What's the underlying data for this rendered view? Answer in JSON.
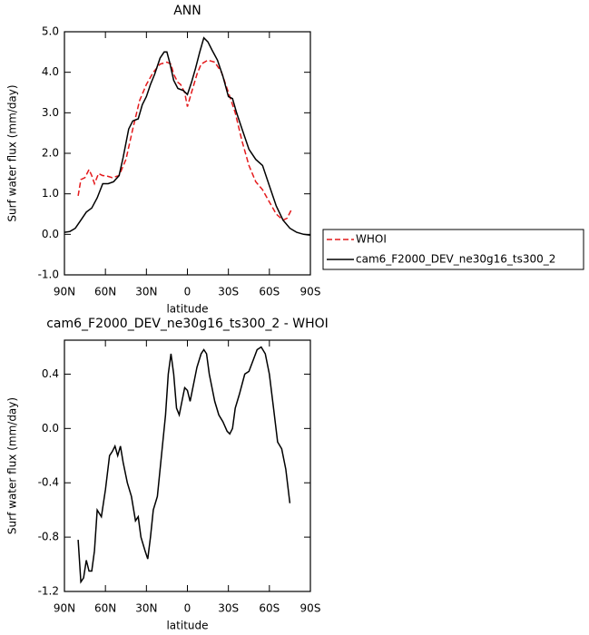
{
  "chart_data": [
    {
      "type": "line",
      "title": "ANN",
      "x_label": "latitude",
      "y_label": "Surf water flux (mm/day)",
      "xlim": [
        90,
        -90
      ],
      "xticks": [
        {
          "value": 90,
          "label": "90N"
        },
        {
          "value": 60,
          "label": "60N"
        },
        {
          "value": 30,
          "label": "30N"
        },
        0,
        {
          "value": -30,
          "label": "30S"
        },
        {
          "value": -60,
          "label": "60S"
        },
        {
          "value": -90,
          "label": "90S"
        }
      ],
      "ylim": [
        -1,
        5
      ],
      "yticks": [
        {
          "value": -1,
          "label": "-1.0"
        },
        {
          "value": 0,
          "label": "0.0"
        },
        {
          "value": 1,
          "label": "1.0"
        },
        {
          "value": 2,
          "label": "2.0"
        },
        {
          "value": 3,
          "label": "3.0"
        },
        {
          "value": 4,
          "label": "4.0"
        },
        {
          "value": 5,
          "label": "5.0"
        }
      ],
      "legend": "right",
      "series": [
        {
          "name": "WHOI",
          "color": "#e41a1c",
          "dashed": true,
          "x": [
            80,
            78,
            75,
            72,
            70,
            68,
            65,
            62,
            60,
            55,
            50,
            45,
            40,
            35,
            30,
            25,
            20,
            15,
            12,
            10,
            7,
            5,
            2,
            0,
            -3,
            -7,
            -10,
            -15,
            -20,
            -25,
            -30,
            -35,
            -40,
            -45,
            -50,
            -55,
            -60,
            -65,
            -70,
            -73,
            -76
          ],
          "values": [
            0.95,
            1.35,
            1.4,
            1.6,
            1.45,
            1.25,
            1.5,
            1.45,
            1.45,
            1.4,
            1.45,
            1.85,
            2.6,
            3.3,
            3.7,
            4.0,
            4.2,
            4.25,
            4.2,
            3.95,
            3.75,
            3.7,
            3.5,
            3.15,
            3.5,
            3.95,
            4.2,
            4.3,
            4.25,
            4.0,
            3.5,
            3.0,
            2.3,
            1.7,
            1.3,
            1.1,
            0.8,
            0.5,
            0.35,
            0.4,
            0.6
          ]
        },
        {
          "name": "cam6_F2000_DEV_ne30g16_ts300_2",
          "color": "#000000",
          "dashed": false,
          "x": [
            90,
            86,
            82,
            78,
            74,
            70,
            66,
            62,
            58,
            54,
            50,
            47,
            43,
            40,
            36,
            33,
            30,
            27,
            24,
            20,
            17,
            15,
            13,
            10,
            7,
            3,
            0,
            -3,
            -6,
            -9,
            -12,
            -15,
            -18,
            -22,
            -26,
            -30,
            -33,
            -36,
            -40,
            -45,
            -50,
            -55,
            -60,
            -65,
            -70,
            -75,
            -80,
            -85,
            -90
          ],
          "values": [
            0.05,
            0.07,
            0.15,
            0.35,
            0.55,
            0.65,
            0.9,
            1.25,
            1.25,
            1.3,
            1.45,
            1.9,
            2.6,
            2.8,
            2.85,
            3.2,
            3.4,
            3.7,
            3.95,
            4.35,
            4.5,
            4.5,
            4.25,
            3.8,
            3.6,
            3.55,
            3.45,
            3.75,
            4.1,
            4.5,
            4.85,
            4.75,
            4.55,
            4.3,
            3.9,
            3.4,
            3.35,
            3.0,
            2.6,
            2.1,
            1.85,
            1.7,
            1.2,
            0.7,
            0.35,
            0.15,
            0.05,
            0.0,
            -0.02
          ]
        }
      ]
    },
    {
      "type": "line",
      "title": "cam6_F2000_DEV_ne30g16_ts300_2 - WHOI",
      "x_label": "latitude",
      "y_label": "Surf water flux (mm/day)",
      "xlim": [
        90,
        -90
      ],
      "xticks": [
        {
          "value": 90,
          "label": "90N"
        },
        {
          "value": 60,
          "label": "60N"
        },
        {
          "value": 30,
          "label": "30N"
        },
        0,
        {
          "value": -30,
          "label": "30S"
        },
        {
          "value": -60,
          "label": "60S"
        },
        {
          "value": -90,
          "label": "90S"
        }
      ],
      "ylim": [
        -1.2,
        0.65
      ],
      "yticks": [
        {
          "value": -1.2,
          "label": "-1.2"
        },
        {
          "value": -0.8,
          "label": "-0.8"
        },
        {
          "value": -0.4,
          "label": "-0.4"
        },
        {
          "value": 0,
          "label": "0.0"
        },
        {
          "value": 0.4,
          "label": "0.4"
        }
      ],
      "series": [
        {
          "color": "#000000",
          "dashed": false,
          "x": [
            80,
            78,
            76,
            74,
            72,
            70,
            68,
            66,
            63,
            60,
            57,
            55,
            53,
            51,
            49,
            47,
            44,
            41,
            38,
            36,
            34,
            31,
            29,
            27,
            25,
            22,
            19,
            16,
            14,
            12,
            10,
            8,
            6,
            4,
            2,
            0,
            -2,
            -4,
            -7,
            -10,
            -12,
            -14,
            -16,
            -18,
            -20,
            -23,
            -26,
            -29,
            -31,
            -33,
            -35,
            -38,
            -42,
            -45,
            -48,
            -51,
            -54,
            -57,
            -60,
            -63,
            -66,
            -69,
            -72,
            -75
          ],
          "values": [
            -0.82,
            -1.13,
            -1.1,
            -0.97,
            -1.05,
            -1.05,
            -0.9,
            -0.6,
            -0.65,
            -0.45,
            -0.2,
            -0.17,
            -0.13,
            -0.2,
            -0.13,
            -0.25,
            -0.4,
            -0.5,
            -0.68,
            -0.65,
            -0.8,
            -0.9,
            -0.96,
            -0.8,
            -0.6,
            -0.5,
            -0.2,
            0.1,
            0.4,
            0.55,
            0.4,
            0.15,
            0.1,
            0.2,
            0.3,
            0.28,
            0.2,
            0.3,
            0.45,
            0.55,
            0.58,
            0.55,
            0.4,
            0.3,
            0.2,
            0.1,
            0.05,
            -0.02,
            -0.04,
            0.0,
            0.15,
            0.25,
            0.4,
            0.42,
            0.5,
            0.58,
            0.6,
            0.55,
            0.4,
            0.15,
            -0.1,
            -0.15,
            -0.3,
            -0.55
          ]
        }
      ]
    }
  ]
}
